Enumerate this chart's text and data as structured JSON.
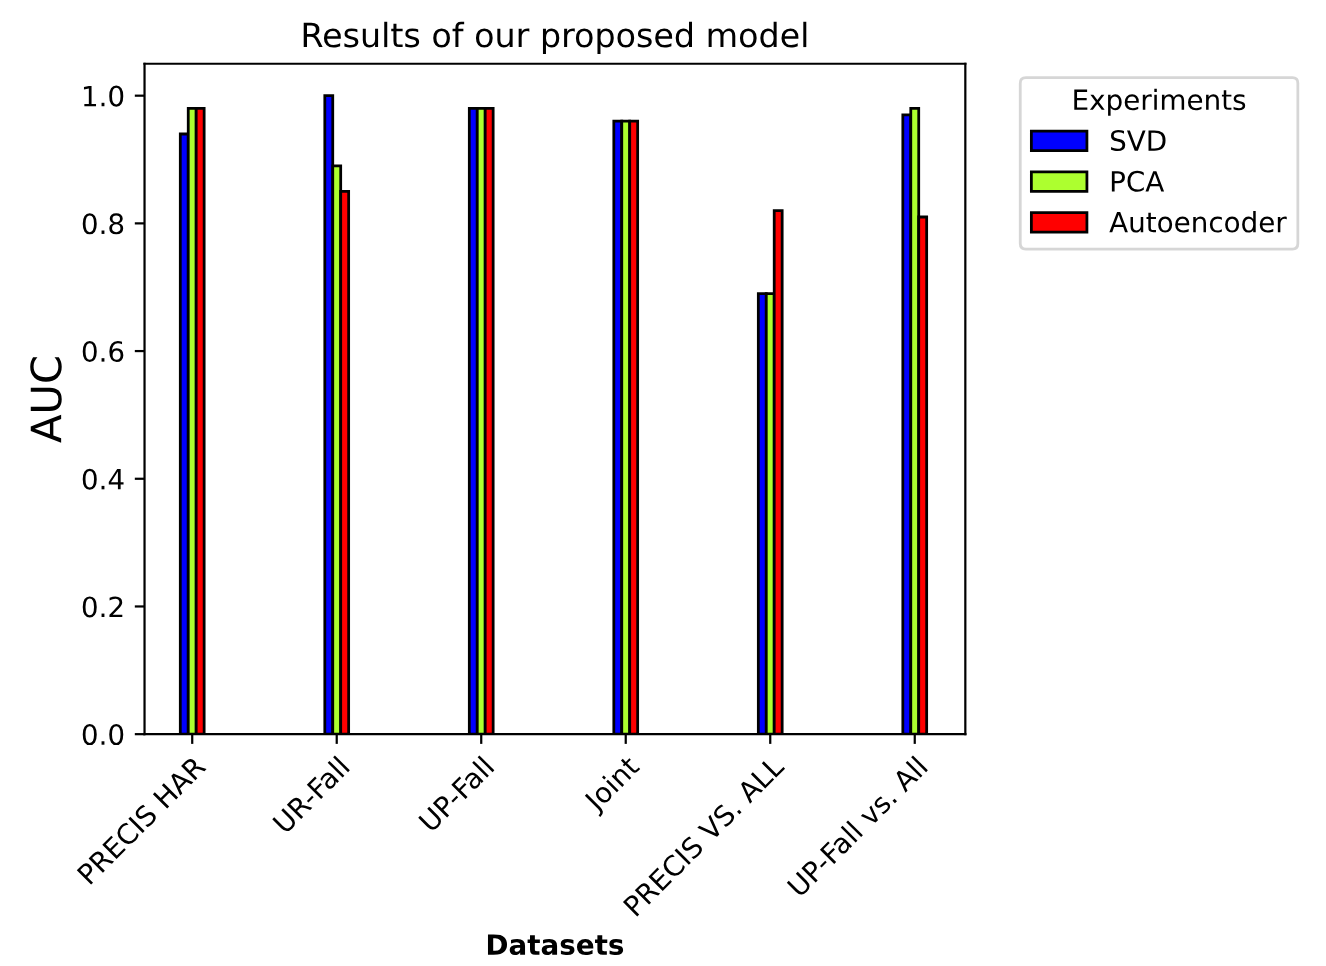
{
  "chart_data": {
    "type": "bar",
    "title": "Results of our proposed model",
    "xlabel": "Datasets",
    "ylabel": "AUC",
    "legend_title": "Experiments",
    "categories": [
      "PRECIS HAR",
      "UR-Fall",
      "UP-Fall",
      "Joint",
      "PRECIS VS. ALL",
      "UP-Fall vs. All"
    ],
    "series": [
      {
        "name": "SVD",
        "color": "#0000ff",
        "values": [
          0.94,
          1.0,
          0.98,
          0.96,
          0.69,
          0.97
        ]
      },
      {
        "name": "PCA",
        "color": "#adff2f",
        "values": [
          0.98,
          0.89,
          0.98,
          0.96,
          0.69,
          0.98
        ]
      },
      {
        "name": "Autoencoder",
        "color": "#ff0000",
        "values": [
          0.98,
          0.85,
          0.98,
          0.96,
          0.82,
          0.81
        ]
      }
    ],
    "ylim": [
      0,
      1.05
    ],
    "yticks": [
      {
        "value": 0,
        "label": "0.0"
      },
      0.2,
      0.4,
      0.6,
      0.8,
      {
        "value": 1,
        "label": "1.0"
      }
    ],
    "grid": false,
    "legend": "top right"
  }
}
